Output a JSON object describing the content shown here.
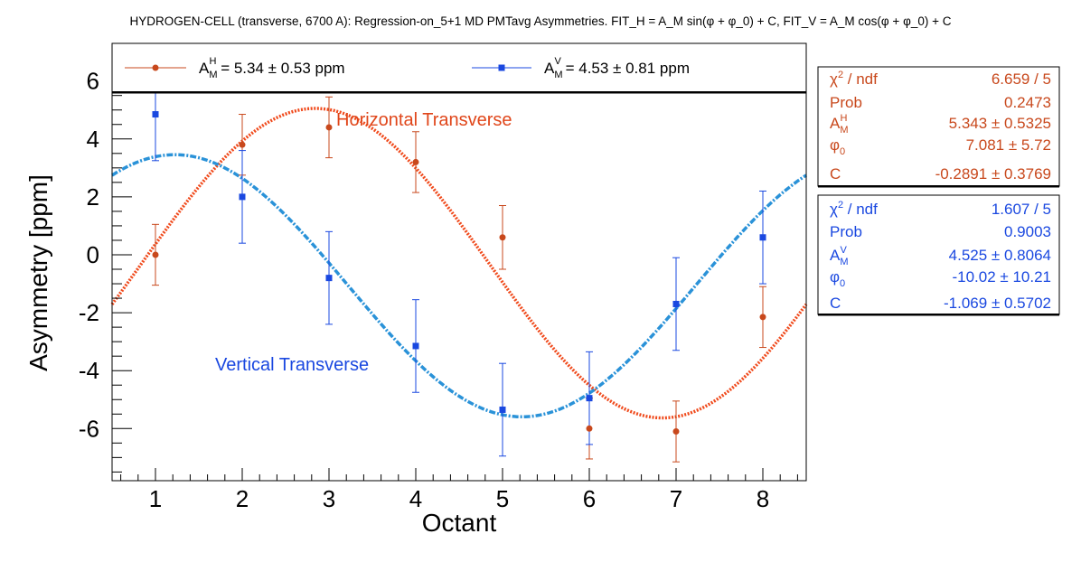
{
  "chart_data": {
    "type": "scatter",
    "title": "HYDROGEN-CELL (transverse, 6700 A): Regression-on_5+1 MD PMTavg Asymmetries. FIT_H = A_M sin(φ + φ_0) + C, FIT_V = A_M cos(φ + φ_0) + C",
    "xlabel": "Octant",
    "ylabel": "Asymmetry [ppm]",
    "xlim": [
      0.5,
      8.5
    ],
    "ylim": [
      -7.8,
      7.3
    ],
    "x_ticks": [
      1,
      2,
      3,
      4,
      5,
      6,
      7,
      8
    ],
    "y_ticks": [
      6,
      4,
      2,
      0,
      -2,
      -4,
      -6
    ],
    "grid": false,
    "legend_placement": "top",
    "series": [
      {
        "name": "A_M^H = 5.34 ± 0.53 ppm",
        "legend_main": "A",
        "legend_sub": "M",
        "legend_sup": "H",
        "legend_rest": " = 5.34 ± 0.53 ppm",
        "color": "#c8481c",
        "fit_color": "#f04a1c",
        "marker": "circle",
        "x": [
          1,
          2,
          3,
          4,
          5,
          6,
          7,
          8
        ],
        "y": [
          0.0,
          3.8,
          4.4,
          3.2,
          0.6,
          -6.0,
          -6.1,
          -2.15
        ],
        "yerr": [
          1.05,
          1.05,
          1.05,
          1.05,
          1.1,
          1.05,
          1.05,
          1.05
        ],
        "fit": {
          "function": "A_M sin(φ + φ_0) + C",
          "A_M": 5.343,
          "phi0": 7.081,
          "C": -0.2891
        },
        "annotation": "Horizontal Transverse",
        "stats": [
          {
            "label": "χ² / ndf",
            "value": "6.659 / 5"
          },
          {
            "label": "Prob",
            "value": "0.2473"
          },
          {
            "label": "A_M^H",
            "value": "5.343 ± 0.5325"
          },
          {
            "label": "φ_0",
            "value": "7.081 ±  5.72"
          },
          {
            "label": "C",
            "value": "-0.2891 ± 0.3769"
          }
        ]
      },
      {
        "name": "A_M^V = 4.53 ± 0.81 ppm",
        "legend_main": "A",
        "legend_sub": "M",
        "legend_sup": "V",
        "legend_rest": " = 4.53 ± 0.81 ppm",
        "color": "#1a48e0",
        "fit_color": "#2a92d8",
        "marker": "square",
        "x": [
          1,
          2,
          3,
          4,
          5,
          6,
          7,
          8
        ],
        "y": [
          4.85,
          2.0,
          -0.8,
          -3.15,
          -5.35,
          -4.95,
          -1.7,
          0.6
        ],
        "yerr": [
          1.6,
          1.6,
          1.6,
          1.6,
          1.6,
          1.6,
          1.6,
          1.6
        ],
        "fit": {
          "function": "A_M cos(φ + φ_0) + C",
          "A_M": 4.525,
          "phi0": -10.02,
          "C": -1.069
        },
        "annotation": "Vertical Transverse",
        "stats": [
          {
            "label": "χ² / ndf",
            "value": "1.607 / 5"
          },
          {
            "label": "Prob",
            "value": "0.9003"
          },
          {
            "label": "A_M^V",
            "value": "4.525 ± 0.8064"
          },
          {
            "label": "φ_0",
            "value": "-10.02 ± 10.21"
          },
          {
            "label": "C",
            "value": "-1.069 ± 0.5702"
          }
        ]
      }
    ]
  }
}
